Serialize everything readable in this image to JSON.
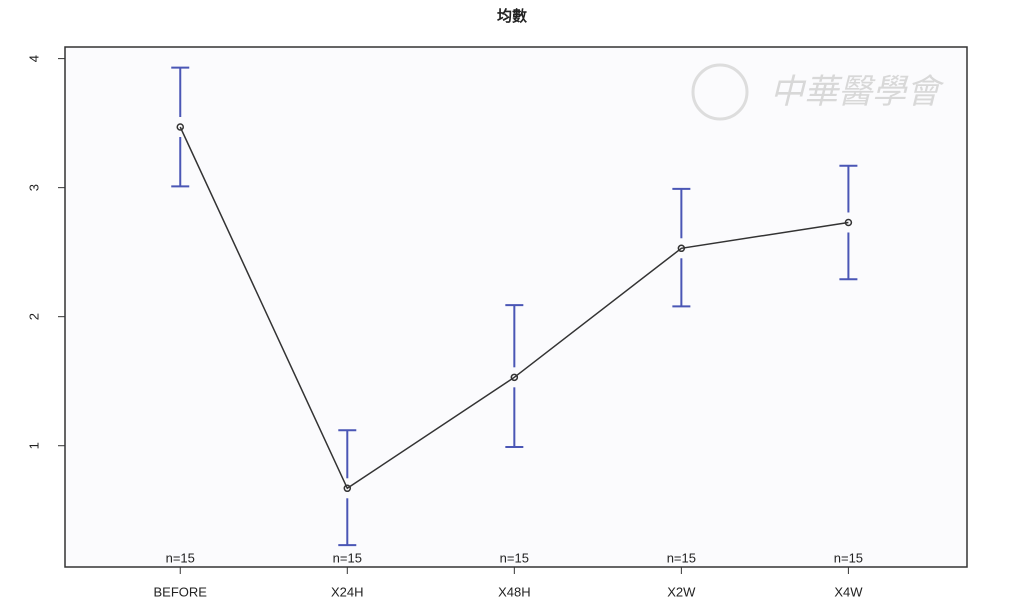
{
  "chart_data": {
    "type": "line",
    "title": "均數",
    "watermark": "中華醫學會",
    "categories": [
      "BEFORE",
      "X24H",
      "X48H",
      "X2W",
      "X4W"
    ],
    "values": [
      3.47,
      0.67,
      1.53,
      2.53,
      2.73
    ],
    "upper": [
      3.93,
      1.12,
      2.09,
      2.99,
      3.17
    ],
    "lower": [
      3.01,
      0.23,
      0.99,
      2.08,
      2.29
    ],
    "n_labels": [
      "n=15",
      "n=15",
      "n=15",
      "n=15",
      "n=15"
    ],
    "color": "#333333",
    "errorbar_color": "#4a56b5",
    "ylim": [
      0.06,
      4.09
    ],
    "yticks": [
      1,
      2,
      3,
      4
    ]
  }
}
